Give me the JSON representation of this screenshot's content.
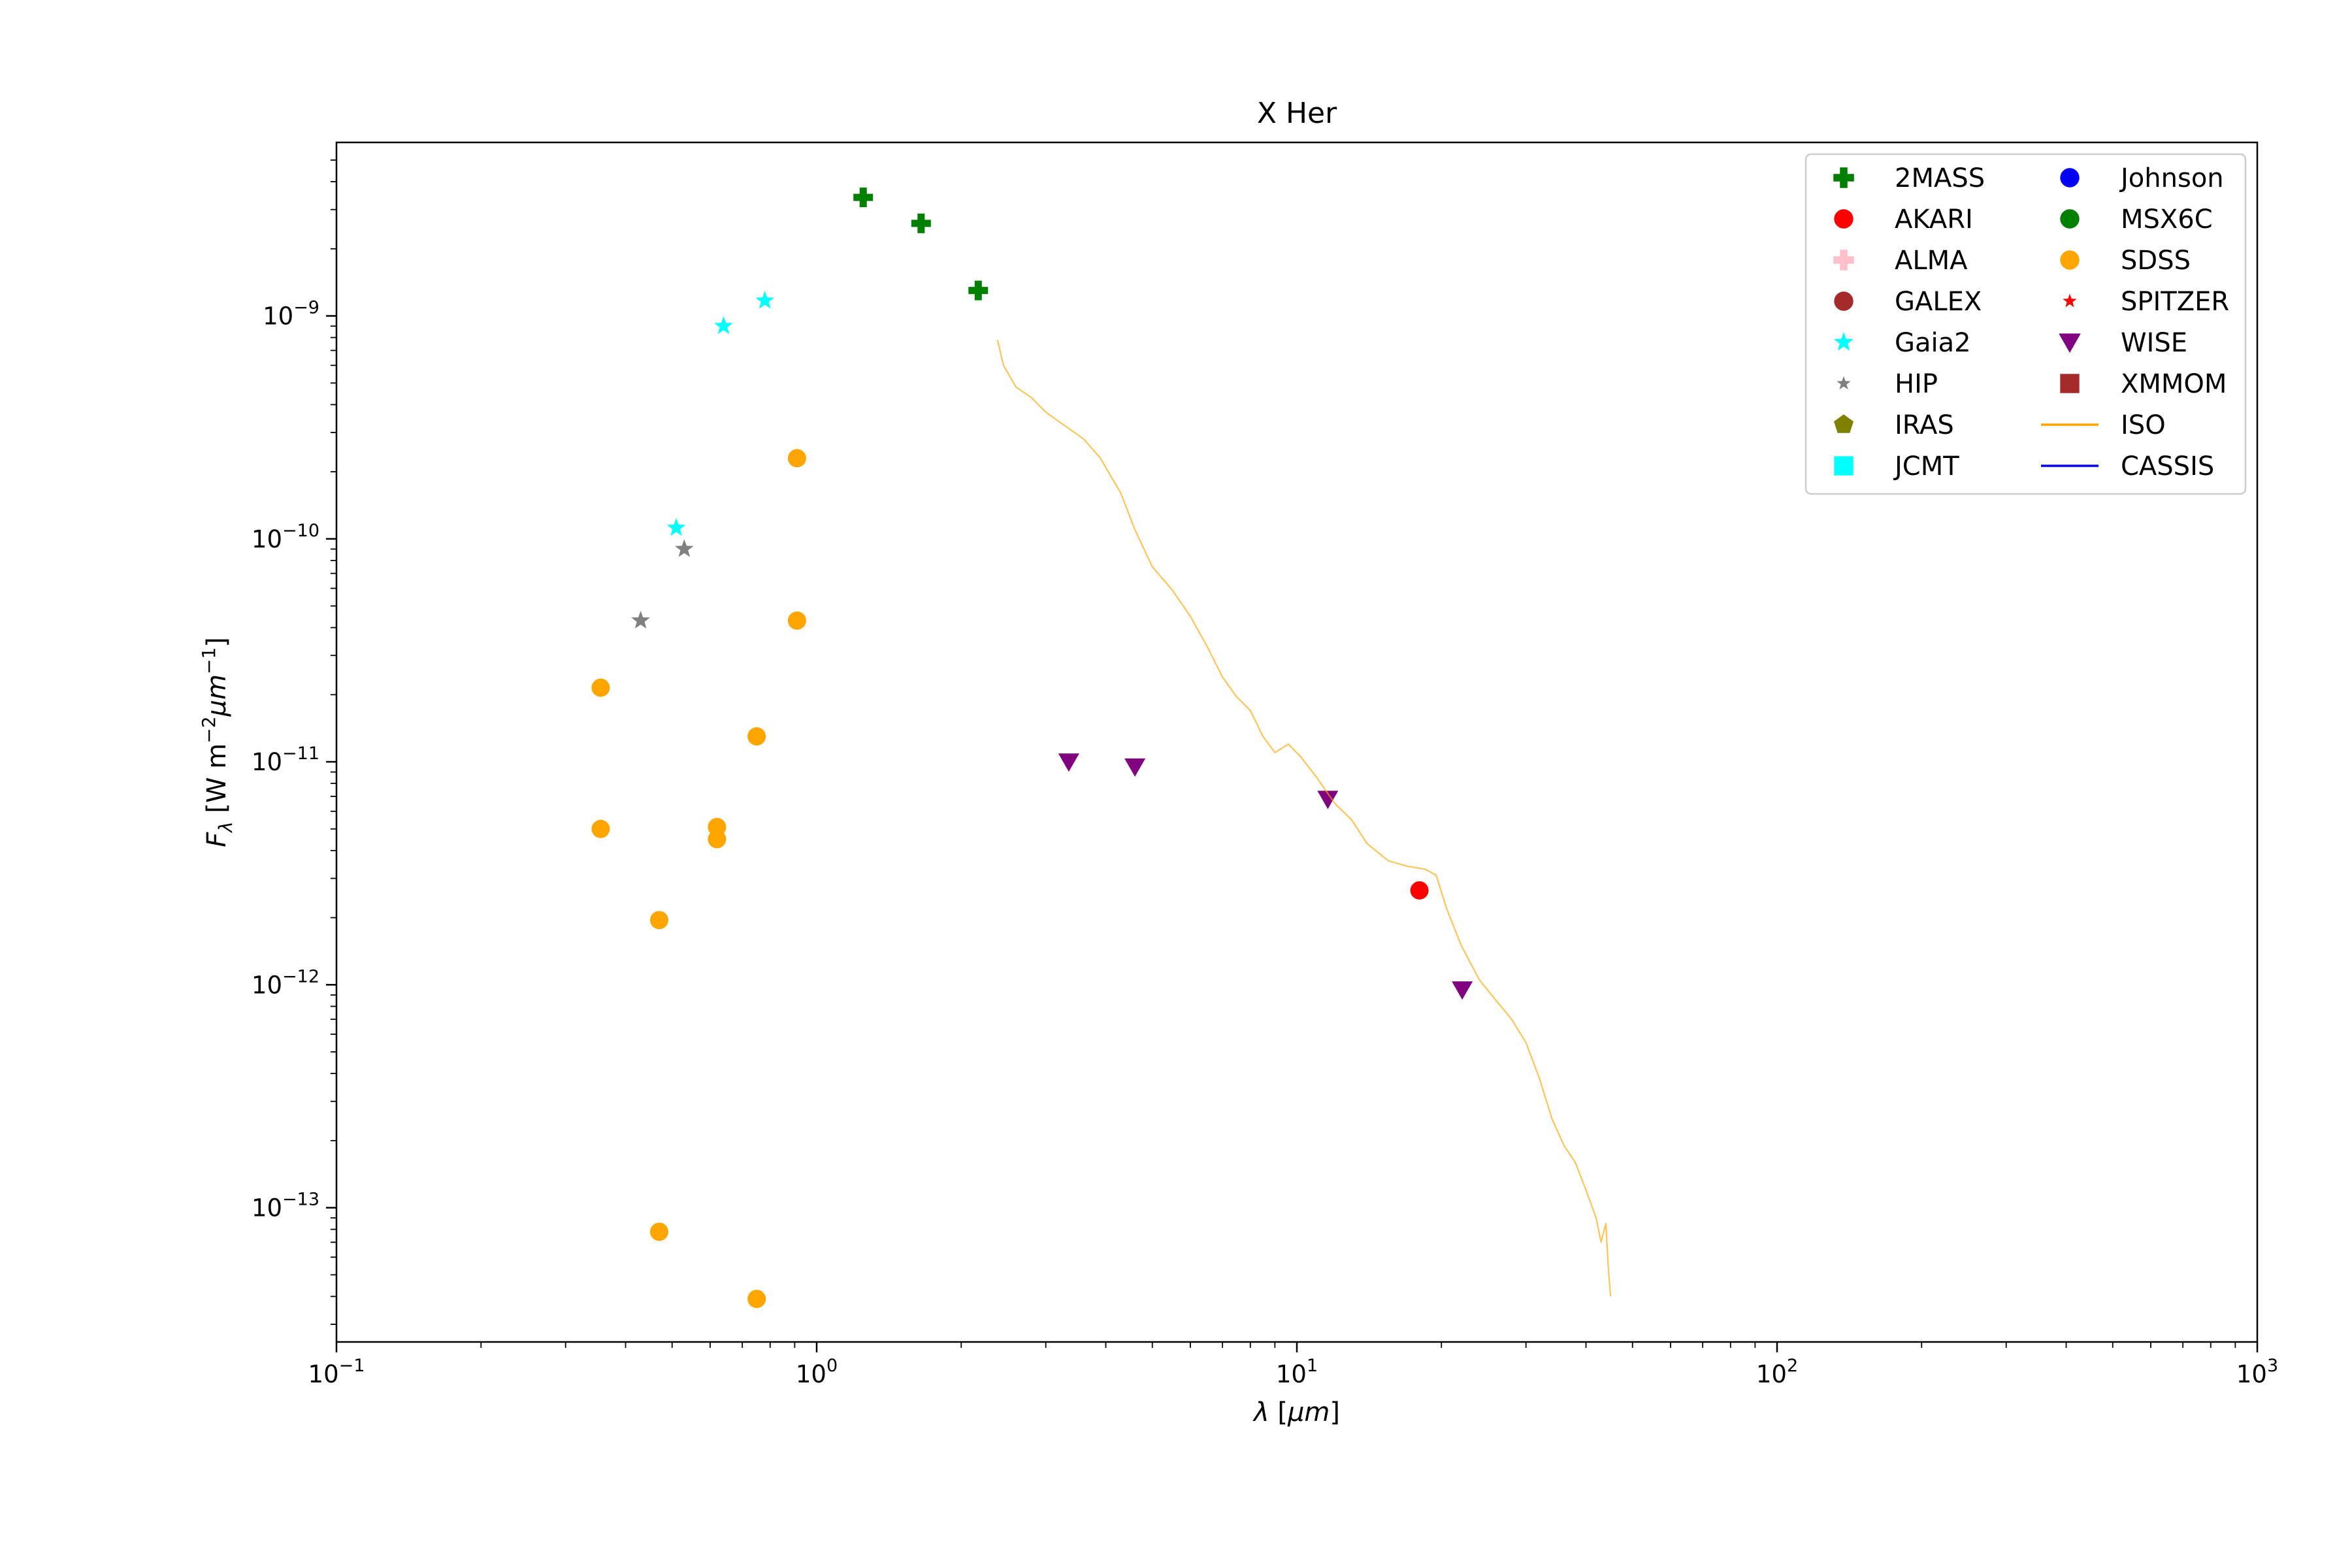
{
  "chart_data": {
    "type": "scatter",
    "title": "X Her",
    "xlabel": "λ [μm]",
    "ylabel": "F_λ [W m^-2 μm^-1]",
    "xscale": "log",
    "yscale": "log",
    "xlim": [
      0.1,
      1000
    ],
    "ylim": [
      2.5e-14,
      6e-09
    ],
    "x_ticks": [
      {
        "value": 0.1,
        "base": "10",
        "exp": "−1"
      },
      {
        "value": 1,
        "base": "10",
        "exp": "0"
      },
      {
        "value": 10,
        "base": "10",
        "exp": "1"
      },
      {
        "value": 100,
        "base": "10",
        "exp": "2"
      },
      {
        "value": 1000,
        "base": "10",
        "exp": "3"
      }
    ],
    "y_ticks": [
      {
        "value": 1e-13,
        "base": "10",
        "exp": "−13"
      },
      {
        "value": 1e-12,
        "base": "10",
        "exp": "−12"
      },
      {
        "value": 1e-11,
        "base": "10",
        "exp": "−11"
      },
      {
        "value": 1e-10,
        "base": "10",
        "exp": "−10"
      },
      {
        "value": 1e-09,
        "base": "10",
        "exp": "−9"
      }
    ],
    "legend_position": "top-right",
    "legend": [
      {
        "name": "2MASS",
        "marker": "plus",
        "color": "#008000"
      },
      {
        "name": "AKARI",
        "marker": "circle",
        "color": "#ff0000"
      },
      {
        "name": "ALMA",
        "marker": "plus",
        "color": "#ffc0cb"
      },
      {
        "name": "GALEX",
        "marker": "circle",
        "color": "#a52a2a"
      },
      {
        "name": "Gaia2",
        "marker": "star",
        "color": "#00ffff"
      },
      {
        "name": "HIP",
        "marker": "star",
        "color": "#808080"
      },
      {
        "name": "IRAS",
        "marker": "pentagon",
        "color": "#808000"
      },
      {
        "name": "JCMT",
        "marker": "square",
        "color": "#00ffff"
      },
      {
        "name": "Johnson",
        "marker": "circle",
        "color": "#0000ff"
      },
      {
        "name": "MSX6C",
        "marker": "circle",
        "color": "#008000"
      },
      {
        "name": "SDSS",
        "marker": "circle",
        "color": "#ffa500"
      },
      {
        "name": "SPITZER",
        "marker": "star",
        "color": "#ff0000"
      },
      {
        "name": "WISE",
        "marker": "triangle-down",
        "color": "#800080"
      },
      {
        "name": "XMMOM",
        "marker": "square",
        "color": "#a52a2a"
      },
      {
        "name": "ISO",
        "marker": "line",
        "color": "#ffa500"
      },
      {
        "name": "CASSIS",
        "marker": "line",
        "color": "#0000ff"
      }
    ],
    "series": [
      {
        "name": "2MASS",
        "marker": "plus",
        "color": "#008000",
        "points": [
          [
            1.25,
            3.4e-09
          ],
          [
            1.65,
            2.6e-09
          ],
          [
            2.17,
            1.3e-09
          ]
        ]
      },
      {
        "name": "AKARI",
        "marker": "circle",
        "color": "#ff0000",
        "points": [
          [
            18.0,
            2.65e-12
          ]
        ]
      },
      {
        "name": "Gaia2",
        "marker": "star",
        "color": "#00ffff",
        "points": [
          [
            0.51,
            1.12e-10
          ],
          [
            0.64,
            9e-10
          ],
          [
            0.78,
            1.17e-09
          ]
        ]
      },
      {
        "name": "HIP",
        "marker": "star",
        "color": "#808080",
        "points": [
          [
            0.43,
            4.3e-11
          ],
          [
            0.53,
            9e-11
          ]
        ]
      },
      {
        "name": "SDSS",
        "marker": "circle",
        "color": "#ffa500",
        "points": [
          [
            0.355,
            2.15e-11
          ],
          [
            0.355,
            5e-12
          ],
          [
            0.47,
            1.95e-12
          ],
          [
            0.47,
            7.8e-14
          ],
          [
            0.62,
            5.1e-12
          ],
          [
            0.62,
            4.5e-12
          ],
          [
            0.75,
            1.3e-11
          ],
          [
            0.75,
            3.9e-14
          ],
          [
            0.91,
            2.3e-10
          ],
          [
            0.91,
            4.3e-11
          ]
        ]
      },
      {
        "name": "WISE",
        "marker": "triangle-down",
        "color": "#800080",
        "points": [
          [
            3.35,
            1e-11
          ],
          [
            4.6,
            9.5e-12
          ],
          [
            11.6,
            6.8e-12
          ],
          [
            22.1,
            9.5e-13
          ]
        ]
      },
      {
        "name": "ISO",
        "marker": "line",
        "color": "#ffa500",
        "points": [
          [
            2.38,
            7.8e-10
          ],
          [
            2.45,
            6e-10
          ],
          [
            2.6,
            4.8e-10
          ],
          [
            2.8,
            4.3e-10
          ],
          [
            3.0,
            3.7e-10
          ],
          [
            3.3,
            3.2e-10
          ],
          [
            3.6,
            2.8e-10
          ],
          [
            3.9,
            2.3e-10
          ],
          [
            4.3,
            1.6e-10
          ],
          [
            4.6,
            1.1e-10
          ],
          [
            5.0,
            7.5e-11
          ],
          [
            5.5,
            5.9e-11
          ],
          [
            6.0,
            4.5e-11
          ],
          [
            6.5,
            3.3e-11
          ],
          [
            7.0,
            2.4e-11
          ],
          [
            7.5,
            1.95e-11
          ],
          [
            8.0,
            1.7e-11
          ],
          [
            8.5,
            1.3e-11
          ],
          [
            9.0,
            1.1e-11
          ],
          [
            9.6,
            1.2e-11
          ],
          [
            10.2,
            1.05e-11
          ],
          [
            11.0,
            8.5e-12
          ],
          [
            12.0,
            6.5e-12
          ],
          [
            13.0,
            5.5e-12
          ],
          [
            14.0,
            4.3e-12
          ],
          [
            15.5,
            3.6e-12
          ],
          [
            17.0,
            3.4e-12
          ],
          [
            18.5,
            3.3e-12
          ],
          [
            19.5,
            3.1e-12
          ],
          [
            20.5,
            2.2e-12
          ],
          [
            22.0,
            1.5e-12
          ],
          [
            24.0,
            1.05e-12
          ],
          [
            26.0,
            8.5e-13
          ],
          [
            28.0,
            7e-13
          ],
          [
            30.0,
            5.5e-13
          ],
          [
            32.0,
            3.8e-13
          ],
          [
            34.0,
            2.5e-13
          ],
          [
            36.0,
            1.9e-13
          ],
          [
            38.0,
            1.6e-13
          ],
          [
            40.0,
            1.2e-13
          ],
          [
            42.0,
            9e-14
          ],
          [
            43.0,
            7e-14
          ],
          [
            44.0,
            8.5e-14
          ],
          [
            44.5,
            5.5e-14
          ],
          [
            45.0,
            4e-14
          ]
        ]
      }
    ]
  }
}
